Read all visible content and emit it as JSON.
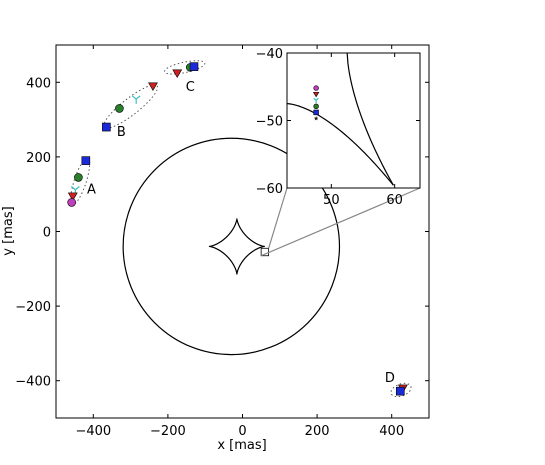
{
  "chart_data": {
    "type": "scatter",
    "xlabel": "x [mas]",
    "ylabel": "y [mas]",
    "xlim": [
      -500,
      500
    ],
    "ylim": [
      -500,
      500
    ],
    "xticks": [
      -400,
      -200,
      0,
      200,
      400
    ],
    "yticks": [
      -400,
      -200,
      0,
      200,
      400
    ],
    "xtick_labels": [
      "−400",
      "−200",
      "0",
      "200",
      "400"
    ],
    "ytick_labels": [
      "−400",
      "−200",
      "0",
      "200",
      "400"
    ],
    "grid": false,
    "critical_curve": {
      "center": [
        -30,
        -40
      ],
      "radius": 290
    },
    "caustic": {
      "center": [
        -15,
        -40
      ],
      "radius": 75
    },
    "source_box": {
      "center": [
        60,
        -55
      ],
      "half_size": 10
    },
    "marker_legend": [
      {
        "marker": "circle",
        "color": "#bf3fbf"
      },
      {
        "marker": "triangle-down",
        "color": "#cc2222"
      },
      {
        "marker": "tri-down",
        "color": "#3fbfbf"
      },
      {
        "marker": "circle",
        "color": "#2a7f2a"
      },
      {
        "marker": "square",
        "color": "#1a2ad6"
      },
      {
        "marker": "star",
        "color": "#222222"
      }
    ],
    "image_groups": [
      {
        "label": "A",
        "ellipse": {
          "center": [
            -435,
            135
          ],
          "rx": 65,
          "ry": 16,
          "angle": 72
        },
        "points": [
          {
            "x": -420,
            "y": 190,
            "marker": "square",
            "color": "#1a2ad6"
          },
          {
            "x": -440,
            "y": 145,
            "marker": "circle",
            "color": "#2a7f2a"
          },
          {
            "x": -448,
            "y": 112,
            "marker": "tri-down",
            "color": "#3fbfbf"
          },
          {
            "x": -455,
            "y": 95,
            "marker": "triangle-down",
            "color": "#cc2222"
          },
          {
            "x": -458,
            "y": 78,
            "marker": "circle",
            "color": "#bf3fbf"
          }
        ]
      },
      {
        "label": "B",
        "ellipse": {
          "center": [
            -300,
            335
          ],
          "rx": 90,
          "ry": 22,
          "angle": 38
        },
        "points": [
          {
            "x": -240,
            "y": 390,
            "marker": "triangle-down",
            "color": "#cc2222"
          },
          {
            "x": -285,
            "y": 355,
            "marker": "tri-down",
            "color": "#3fbfbf"
          },
          {
            "x": -330,
            "y": 330,
            "marker": "circle",
            "color": "#2a7f2a"
          },
          {
            "x": -365,
            "y": 280,
            "marker": "square",
            "color": "#1a2ad6"
          }
        ]
      },
      {
        "label": "C",
        "ellipse": {
          "center": [
            -155,
            440
          ],
          "rx": 55,
          "ry": 14,
          "angle": 12
        },
        "points": [
          {
            "x": -175,
            "y": 425,
            "marker": "triangle-down",
            "color": "#cc2222"
          },
          {
            "x": -140,
            "y": 440,
            "marker": "circle",
            "color": "#2a7f2a"
          },
          {
            "x": -130,
            "y": 442,
            "marker": "square",
            "color": "#1a2ad6"
          }
        ]
      },
      {
        "label": "D",
        "ellipse": {
          "center": [
            425,
            -425
          ],
          "rx": 28,
          "ry": 16,
          "angle": 20
        },
        "points": [
          {
            "x": 430,
            "y": -420,
            "marker": "triangle-down",
            "color": "#cc2222"
          },
          {
            "x": 423,
            "y": -428,
            "marker": "square",
            "color": "#1a2ad6"
          }
        ]
      }
    ],
    "inset": {
      "xlim": [
        43,
        64
      ],
      "ylim": [
        -60,
        -40
      ],
      "xticks": [
        50,
        60
      ],
      "yticks": [
        -40,
        -50,
        -60
      ],
      "xtick_labels": [
        "50",
        "60"
      ],
      "ytick_labels": [
        "−40",
        "−50",
        "−60"
      ]
    }
  }
}
